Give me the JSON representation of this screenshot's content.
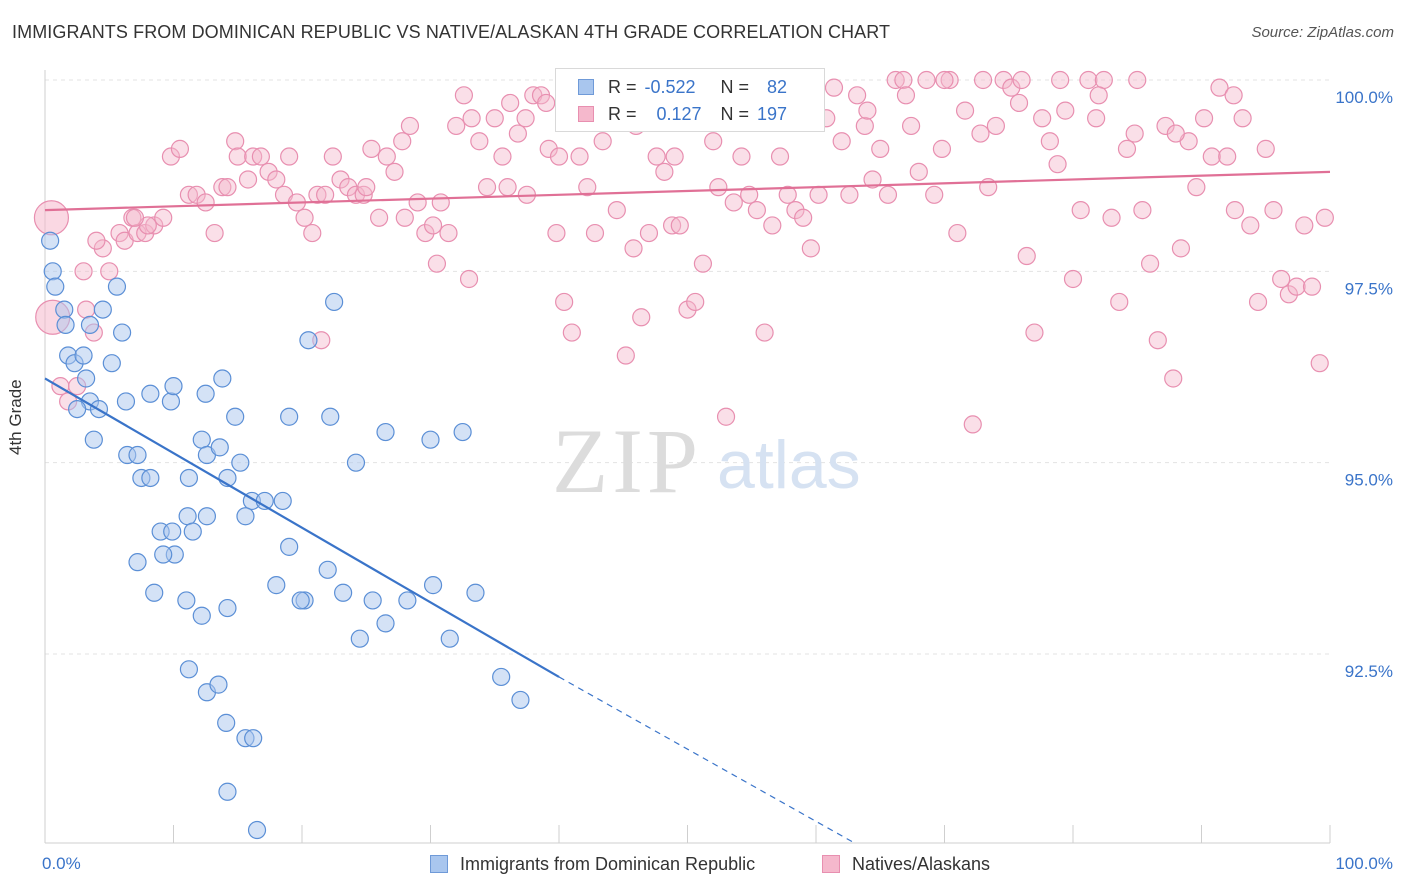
{
  "title": "IMMIGRANTS FROM DOMINICAN REPUBLIC VS NATIVE/ALASKAN 4TH GRADE CORRELATION CHART",
  "source": "Source: ZipAtlas.com",
  "watermark": {
    "zip": "ZIP",
    "atlas": "atlas"
  },
  "colors": {
    "blue": "#3a74c9",
    "blue_fill": "#a9c6ee",
    "pink": "#e07096",
    "pink_fill": "#f5b8cc"
  },
  "legend": {
    "r_label": "R =",
    "n_label": "N =",
    "rows": [
      {
        "r": "-0.522",
        "n": "82"
      },
      {
        "r": "0.127",
        "n": "197"
      }
    ]
  },
  "chart_data": {
    "type": "scatter",
    "title": "IMMIGRANTS FROM DOMINICAN REPUBLIC VS NATIVE/ALASKAN 4TH GRADE CORRELATION CHART",
    "xlabel": "",
    "ylabel": "4th Grade",
    "xlim": [
      0,
      100
    ],
    "ylim": [
      90.0,
      100.3
    ],
    "x_tick_labels": [
      "0.0%",
      "100.0%"
    ],
    "y_ticks": [
      {
        "value": 100.0,
        "label": "100.0%"
      },
      {
        "value": 97.5,
        "label": "97.5%"
      },
      {
        "value": 95.0,
        "label": "95.0%"
      },
      {
        "value": 92.5,
        "label": "92.5%"
      }
    ],
    "grid": true,
    "legend_position": "bottom",
    "series": [
      {
        "name": "Immigrants from Dominican Republic",
        "color": "#3a74c9",
        "trend": {
          "x0": 0,
          "y0": 96.1,
          "x1": 40,
          "y1": 92.2,
          "dash_to_x": 63,
          "dash_to_y": 90.0
        },
        "points": [
          [
            0.4,
            97.9
          ],
          [
            0.6,
            97.5
          ],
          [
            0.8,
            97.3
          ],
          [
            1.5,
            97.0
          ],
          [
            1.6,
            96.8
          ],
          [
            1.8,
            96.4
          ],
          [
            2.3,
            96.3
          ],
          [
            3.0,
            96.4
          ],
          [
            3.5,
            96.8
          ],
          [
            4.5,
            97.0
          ],
          [
            5.6,
            97.3
          ],
          [
            6.0,
            96.7
          ],
          [
            5.2,
            96.3
          ],
          [
            3.2,
            96.1
          ],
          [
            3.5,
            95.8
          ],
          [
            2.5,
            95.7
          ],
          [
            4.2,
            95.7
          ],
          [
            6.3,
            95.8
          ],
          [
            8.2,
            95.9
          ],
          [
            9.8,
            95.8
          ],
          [
            3.8,
            95.3
          ],
          [
            6.4,
            95.1
          ],
          [
            7.2,
            95.1
          ],
          [
            7.5,
            94.8
          ],
          [
            8.2,
            94.8
          ],
          [
            11.2,
            94.8
          ],
          [
            12.2,
            95.3
          ],
          [
            12.6,
            95.1
          ],
          [
            13.6,
            95.2
          ],
          [
            14.2,
            94.8
          ],
          [
            15.2,
            95.0
          ],
          [
            16.1,
            94.5
          ],
          [
            17.1,
            94.5
          ],
          [
            9.0,
            94.1
          ],
          [
            9.9,
            94.1
          ],
          [
            10.1,
            93.8
          ],
          [
            11.1,
            94.3
          ],
          [
            11.5,
            94.1
          ],
          [
            12.6,
            94.3
          ],
          [
            15.6,
            94.3
          ],
          [
            18.5,
            94.5
          ],
          [
            19.0,
            93.9
          ],
          [
            20.2,
            93.2
          ],
          [
            7.2,
            93.7
          ],
          [
            8.5,
            93.3
          ],
          [
            9.2,
            93.8
          ],
          [
            11.0,
            93.2
          ],
          [
            12.2,
            93.0
          ],
          [
            14.2,
            93.1
          ],
          [
            18.0,
            93.4
          ],
          [
            19.9,
            93.2
          ],
          [
            22.0,
            93.6
          ],
          [
            23.2,
            93.3
          ],
          [
            24.5,
            92.7
          ],
          [
            25.5,
            93.2
          ],
          [
            26.5,
            92.9
          ],
          [
            28.2,
            93.2
          ],
          [
            30.2,
            93.4
          ],
          [
            31.5,
            92.7
          ],
          [
            33.5,
            93.3
          ],
          [
            35.5,
            92.2
          ],
          [
            37.0,
            91.9
          ],
          [
            11.2,
            92.3
          ],
          [
            12.6,
            92.0
          ],
          [
            13.5,
            92.1
          ],
          [
            14.1,
            91.6
          ],
          [
            15.6,
            91.4
          ],
          [
            16.2,
            91.4
          ],
          [
            14.2,
            90.7
          ],
          [
            16.5,
            90.2
          ],
          [
            10.0,
            96.0
          ],
          [
            12.5,
            95.9
          ],
          [
            13.8,
            96.1
          ],
          [
            14.8,
            95.6
          ],
          [
            19.0,
            95.6
          ],
          [
            22.2,
            95.6
          ],
          [
            24.2,
            95.0
          ],
          [
            26.5,
            95.4
          ],
          [
            30.0,
            95.3
          ],
          [
            32.5,
            95.4
          ],
          [
            22.5,
            97.1
          ],
          [
            20.5,
            96.6
          ]
        ]
      },
      {
        "name": "Natives/Alaskans",
        "color": "#e07096",
        "trend": {
          "x0": 0,
          "y0": 98.3,
          "x1": 100,
          "y1": 98.8
        },
        "points": [
          [
            0.5,
            98.2
          ],
          [
            0.6,
            96.9
          ],
          [
            1.2,
            96.0
          ],
          [
            1.8,
            95.8
          ],
          [
            2.5,
            96.0
          ],
          [
            3.2,
            97.0
          ],
          [
            3.8,
            96.7
          ],
          [
            4.5,
            97.8
          ],
          [
            5.0,
            97.5
          ],
          [
            5.8,
            98.0
          ],
          [
            6.2,
            97.9
          ],
          [
            6.8,
            98.2
          ],
          [
            7.2,
            98.0
          ],
          [
            7.8,
            98.0
          ],
          [
            8.5,
            98.1
          ],
          [
            9.2,
            98.2
          ],
          [
            9.8,
            99.0
          ],
          [
            10.5,
            99.1
          ],
          [
            11.2,
            98.5
          ],
          [
            11.8,
            98.5
          ],
          [
            12.5,
            98.4
          ],
          [
            13.2,
            98.0
          ],
          [
            13.8,
            98.6
          ],
          [
            14.2,
            98.6
          ],
          [
            14.8,
            99.2
          ],
          [
            15.0,
            99.0
          ],
          [
            15.8,
            98.7
          ],
          [
            16.2,
            99.0
          ],
          [
            16.8,
            99.0
          ],
          [
            17.4,
            98.8
          ],
          [
            18.0,
            98.7
          ],
          [
            18.6,
            98.5
          ],
          [
            19.0,
            99.0
          ],
          [
            19.6,
            98.4
          ],
          [
            20.2,
            98.2
          ],
          [
            20.8,
            98.0
          ],
          [
            21.2,
            98.5
          ],
          [
            21.8,
            98.5
          ],
          [
            22.4,
            99.0
          ],
          [
            23.0,
            98.7
          ],
          [
            23.6,
            98.6
          ],
          [
            24.2,
            98.5
          ],
          [
            24.8,
            98.5
          ],
          [
            25.4,
            99.1
          ],
          [
            26.0,
            98.2
          ],
          [
            26.6,
            99.0
          ],
          [
            27.2,
            98.8
          ],
          [
            27.8,
            99.2
          ],
          [
            28.4,
            99.4
          ],
          [
            29.0,
            98.4
          ],
          [
            29.6,
            98.0
          ],
          [
            30.2,
            98.1
          ],
          [
            30.8,
            98.4
          ],
          [
            31.4,
            98.0
          ],
          [
            32.0,
            99.4
          ],
          [
            32.6,
            99.8
          ],
          [
            33.2,
            99.5
          ],
          [
            33.8,
            99.2
          ],
          [
            34.4,
            98.6
          ],
          [
            35.0,
            99.5
          ],
          [
            35.6,
            99.0
          ],
          [
            36.2,
            99.7
          ],
          [
            36.8,
            99.3
          ],
          [
            37.4,
            99.5
          ],
          [
            38.0,
            99.8
          ],
          [
            38.6,
            99.8
          ],
          [
            39.2,
            99.1
          ],
          [
            39.8,
            98.0
          ],
          [
            40.4,
            97.1
          ],
          [
            41.0,
            96.7
          ],
          [
            41.6,
            99.0
          ],
          [
            42.2,
            98.6
          ],
          [
            42.8,
            98.0
          ],
          [
            43.4,
            99.2
          ],
          [
            44.0,
            99.5
          ],
          [
            44.6,
            99.7
          ],
          [
            45.2,
            96.4
          ],
          [
            45.8,
            97.8
          ],
          [
            46.4,
            96.9
          ],
          [
            47.0,
            98.0
          ],
          [
            47.6,
            99.0
          ],
          [
            48.2,
            98.8
          ],
          [
            48.8,
            98.1
          ],
          [
            49.4,
            98.1
          ],
          [
            50.0,
            97.0
          ],
          [
            50.6,
            97.1
          ],
          [
            51.2,
            97.6
          ],
          [
            51.8,
            99.5
          ],
          [
            52.4,
            98.6
          ],
          [
            53.0,
            95.6
          ],
          [
            53.6,
            98.4
          ],
          [
            54.2,
            99.0
          ],
          [
            54.8,
            98.5
          ],
          [
            55.4,
            98.3
          ],
          [
            56.0,
            96.7
          ],
          [
            56.6,
            98.1
          ],
          [
            57.2,
            99.0
          ],
          [
            57.8,
            98.5
          ],
          [
            58.4,
            98.3
          ],
          [
            59.0,
            98.2
          ],
          [
            59.6,
            97.8
          ],
          [
            60.2,
            98.5
          ],
          [
            60.8,
            99.5
          ],
          [
            61.4,
            99.9
          ],
          [
            62.0,
            99.2
          ],
          [
            62.6,
            98.5
          ],
          [
            63.2,
            99.8
          ],
          [
            63.8,
            99.4
          ],
          [
            64.4,
            98.7
          ],
          [
            65.0,
            99.1
          ],
          [
            65.6,
            98.5
          ],
          [
            66.2,
            100.0
          ],
          [
            66.8,
            100.0
          ],
          [
            67.4,
            99.4
          ],
          [
            68.0,
            98.8
          ],
          [
            68.6,
            100.0
          ],
          [
            69.2,
            98.5
          ],
          [
            69.8,
            99.1
          ],
          [
            70.4,
            100.0
          ],
          [
            71.0,
            98.0
          ],
          [
            71.6,
            99.6
          ],
          [
            72.2,
            95.5
          ],
          [
            72.8,
            99.3
          ],
          [
            73.4,
            98.6
          ],
          [
            74.0,
            99.4
          ],
          [
            74.6,
            100.0
          ],
          [
            75.2,
            99.9
          ],
          [
            75.8,
            99.7
          ],
          [
            76.4,
            97.7
          ],
          [
            77.0,
            96.7
          ],
          [
            77.6,
            99.5
          ],
          [
            78.2,
            99.2
          ],
          [
            78.8,
            98.9
          ],
          [
            79.4,
            99.6
          ],
          [
            80.0,
            97.4
          ],
          [
            80.6,
            98.3
          ],
          [
            81.2,
            100.0
          ],
          [
            81.8,
            99.5
          ],
          [
            82.4,
            100.0
          ],
          [
            83.0,
            98.2
          ],
          [
            83.6,
            97.1
          ],
          [
            84.2,
            99.1
          ],
          [
            84.8,
            99.3
          ],
          [
            85.4,
            98.3
          ],
          [
            86.0,
            97.6
          ],
          [
            86.6,
            96.6
          ],
          [
            87.2,
            99.4
          ],
          [
            87.8,
            96.1
          ],
          [
            88.4,
            97.8
          ],
          [
            89.0,
            99.2
          ],
          [
            89.6,
            98.6
          ],
          [
            90.2,
            99.5
          ],
          [
            90.8,
            99.0
          ],
          [
            91.4,
            99.9
          ],
          [
            92.0,
            99.0
          ],
          [
            92.6,
            98.3
          ],
          [
            93.2,
            99.5
          ],
          [
            93.8,
            98.1
          ],
          [
            94.4,
            97.1
          ],
          [
            95.0,
            99.1
          ],
          [
            95.6,
            98.3
          ],
          [
            96.2,
            97.4
          ],
          [
            96.8,
            97.2
          ],
          [
            97.4,
            97.3
          ],
          [
            98.0,
            98.1
          ],
          [
            98.6,
            97.3
          ],
          [
            99.2,
            96.3
          ],
          [
            99.6,
            98.2
          ],
          [
            8.0,
            98.1
          ],
          [
            7.0,
            98.2
          ],
          [
            3.0,
            97.5
          ],
          [
            4.0,
            97.9
          ],
          [
            21.5,
            96.6
          ],
          [
            25.0,
            98.6
          ],
          [
            28.0,
            98.2
          ],
          [
            30.5,
            97.6
          ],
          [
            33.0,
            97.4
          ],
          [
            36.0,
            98.6
          ],
          [
            37.5,
            98.5
          ],
          [
            39.0,
            99.7
          ],
          [
            40.0,
            99.0
          ],
          [
            44.5,
            98.3
          ],
          [
            46.0,
            99.4
          ],
          [
            49.0,
            99.0
          ],
          [
            52.0,
            99.2
          ],
          [
            55.0,
            100.0
          ],
          [
            58.0,
            99.5
          ],
          [
            64.0,
            99.6
          ],
          [
            67.0,
            99.8
          ],
          [
            70.0,
            100.0
          ],
          [
            73.0,
            100.0
          ],
          [
            76.0,
            100.0
          ],
          [
            79.0,
            100.0
          ],
          [
            82.0,
            99.8
          ],
          [
            85.0,
            100.0
          ],
          [
            88.0,
            99.3
          ],
          [
            92.5,
            99.8
          ]
        ]
      }
    ]
  }
}
